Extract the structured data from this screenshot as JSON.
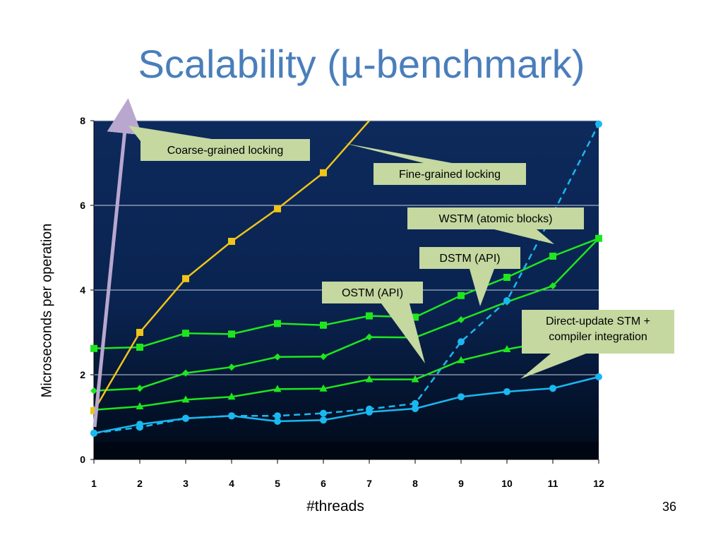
{
  "title": "Scalability (µ-benchmark)",
  "page_number": "36",
  "colors": {
    "title": "#4a7ebb",
    "plot_bg_top": "#0d2a5c",
    "plot_bg_bottom": "#000a18",
    "coarse": "#f0c419",
    "green": "#1ee61e",
    "blue": "#1ab8f0",
    "arrow": "#b9a7cf",
    "callout_bg": "#c4d8a0"
  },
  "chart_data": {
    "type": "line",
    "xlabel": "#threads",
    "ylabel": "Microseconds per operation",
    "x": [
      1,
      2,
      3,
      4,
      5,
      6,
      7,
      8,
      9,
      10,
      11,
      12
    ],
    "xlim": [
      1,
      12
    ],
    "ylim": [
      0,
      8
    ],
    "yticks": [
      0,
      2,
      4,
      6,
      8
    ],
    "grid": true,
    "series": [
      {
        "name": "Coarse-grained locking",
        "color": "#f0c419",
        "marker": "square",
        "style": "solid",
        "values": [
          1.15,
          3.0,
          4.27,
          5.15,
          5.92,
          6.77,
          8.0,
          null,
          null,
          null,
          null,
          null
        ]
      },
      {
        "name": "Fine-grained locking",
        "color": "#1ab8f0",
        "marker": "circle",
        "style": "dashed",
        "values": [
          0.62,
          0.76,
          0.97,
          1.03,
          1.03,
          1.09,
          1.19,
          1.32,
          2.78,
          3.75,
          5.8,
          7.92
        ]
      },
      {
        "name": "WSTM (atomic blocks)",
        "color": "#1ee61e",
        "marker": "square",
        "style": "solid",
        "values": [
          2.62,
          2.65,
          2.98,
          2.96,
          3.21,
          3.17,
          3.39,
          3.36,
          3.87,
          4.3,
          4.8,
          5.22
        ]
      },
      {
        "name": "DSTM (API)",
        "color": "#1ee61e",
        "marker": "diamond",
        "style": "solid",
        "values": [
          1.62,
          1.68,
          2.04,
          2.18,
          2.42,
          2.43,
          2.89,
          2.88,
          3.3,
          3.72,
          4.1,
          5.22
        ]
      },
      {
        "name": "OSTM (API)",
        "color": "#1ee61e",
        "marker": "triangle",
        "style": "solid",
        "values": [
          1.17,
          1.25,
          1.41,
          1.48,
          1.66,
          1.67,
          1.89,
          1.89,
          2.34,
          2.6,
          2.8,
          3.12
        ]
      },
      {
        "name": "Direct-update STM + compiler integration",
        "color": "#1ab8f0",
        "marker": "circle",
        "style": "solid",
        "values": [
          0.62,
          0.83,
          0.97,
          1.03,
          0.9,
          0.93,
          1.12,
          1.2,
          1.48,
          1.6,
          1.68,
          1.95
        ]
      }
    ],
    "annotations": [
      "Coarse-grained locking",
      "Fine-grained locking",
      "WSTM (atomic blocks)",
      "DSTM (API)",
      "OSTM (API)",
      "Direct-update STM + compiler integration"
    ]
  }
}
